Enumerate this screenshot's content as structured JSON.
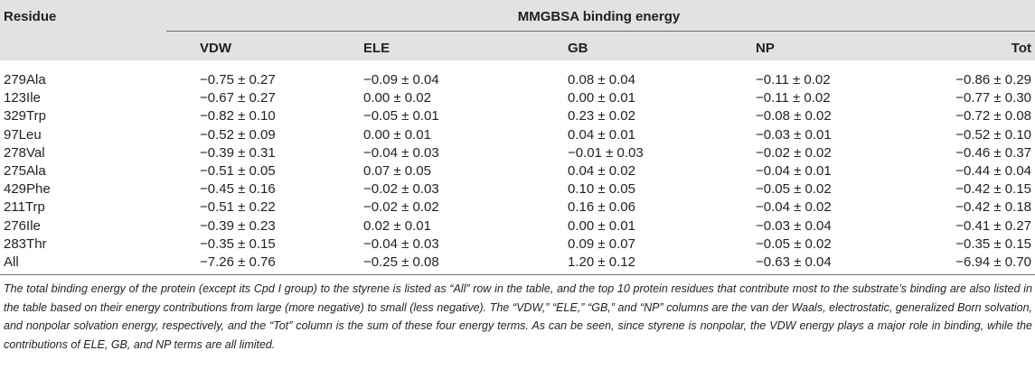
{
  "table": {
    "residue_header": "Residue",
    "group_header": "MMGBSA binding energy",
    "columns": [
      "VDW",
      "ELE",
      "GB",
      "NP",
      "Tot"
    ],
    "rows": [
      {
        "residue": "279Ala",
        "vdw": "−0.75 ± 0.27",
        "ele": "−0.09 ± 0.04",
        "gb": "0.08 ± 0.04",
        "np": "−0.11 ± 0.02",
        "tot": "−0.86 ± 0.29"
      },
      {
        "residue": "123Ile",
        "vdw": "−0.67 ± 0.27",
        "ele": "0.00 ± 0.02",
        "gb": "0.00 ± 0.01",
        "np": "−0.11 ± 0.02",
        "tot": "−0.77 ± 0.30"
      },
      {
        "residue": "329Trp",
        "vdw": "−0.82 ± 0.10",
        "ele": "−0.05 ± 0.01",
        "gb": "0.23 ± 0.02",
        "np": "−0.08 ± 0.02",
        "tot": "−0.72 ± 0.08"
      },
      {
        "residue": "97Leu",
        "vdw": "−0.52 ± 0.09",
        "ele": "0.00 ± 0.01",
        "gb": "0.04 ± 0.01",
        "np": "−0.03 ± 0.01",
        "tot": "−0.52 ± 0.10"
      },
      {
        "residue": "278Val",
        "vdw": "−0.39 ± 0.31",
        "ele": "−0.04 ± 0.03",
        "gb": "−0.01 ± 0.03",
        "np": "−0.02 ± 0.02",
        "tot": "−0.46 ± 0.37"
      },
      {
        "residue": "275Ala",
        "vdw": "−0.51 ± 0.05",
        "ele": "0.07 ± 0.05",
        "gb": "0.04 ± 0.02",
        "np": "−0.04 ± 0.01",
        "tot": "−0.44 ± 0.04"
      },
      {
        "residue": "429Phe",
        "vdw": "−0.45 ± 0.16",
        "ele": "−0.02 ± 0.03",
        "gb": "0.10 ± 0.05",
        "np": "−0.05 ± 0.02",
        "tot": "−0.42 ± 0.15"
      },
      {
        "residue": "211Trp",
        "vdw": "−0.51 ± 0.22",
        "ele": "−0.02 ± 0.02",
        "gb": "0.16 ± 0.06",
        "np": "−0.04 ± 0.02",
        "tot": "−0.42 ± 0.18"
      },
      {
        "residue": "276Ile",
        "vdw": "−0.39 ± 0.23",
        "ele": "0.02 ± 0.01",
        "gb": "0.00 ± 0.01",
        "np": "−0.03 ± 0.04",
        "tot": "−0.41 ± 0.27"
      },
      {
        "residue": "283Thr",
        "vdw": "−0.35 ± 0.15",
        "ele": "−0.04 ± 0.03",
        "gb": "0.09 ± 0.07",
        "np": "−0.05 ± 0.02",
        "tot": "−0.35 ± 0.15"
      },
      {
        "residue": "All",
        "vdw": "−7.26 ± 0.76",
        "ele": "−0.25 ± 0.08",
        "gb": "1.20 ± 0.12",
        "np": "−0.63 ± 0.04",
        "tot": "−6.94 ± 0.70"
      }
    ]
  },
  "footnote": "The total binding energy of the protein (except its Cpd I group) to the styrene is listed as “All” row in the table, and the top 10 protein residues that contribute most to the substrate’s binding are also listed in the table based on their energy contributions from large (more negative) to small (less negative). The “VDW,” “ELE,” “GB,” and “NP” columns are the van der Waals, electrostatic, generalized Born solvation, and nonpolar solvation energy, respectively, and the “Tot” column is the sum of these four energy terms. As can be seen, since styrene is nonpolar, the VDW energy plays a major role in binding, while the contributions of ELE, GB, and NP terms are all limited."
}
